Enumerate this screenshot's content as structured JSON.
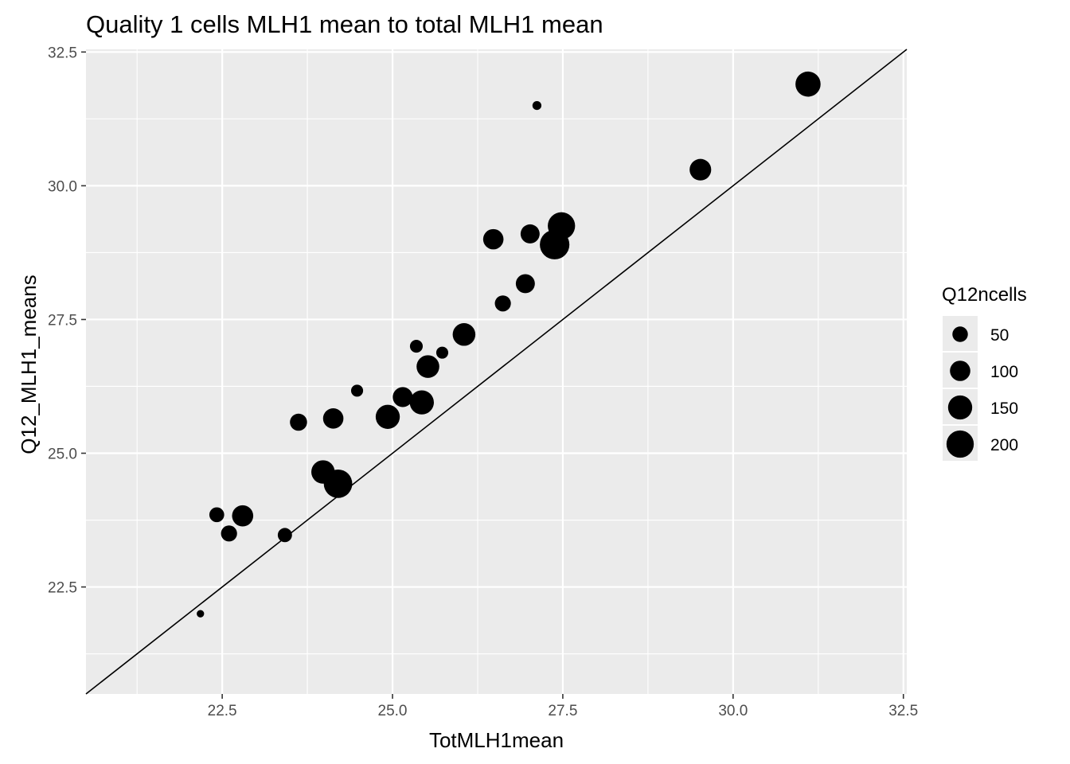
{
  "chart_data": {
    "type": "scatter",
    "title": "Quality 1 cells MLH1 mean to total MLH1 mean",
    "xlabel": "TotMLH1mean",
    "ylabel": "Q12_MLH1_means",
    "xlim": [
      20.5,
      32.55
    ],
    "ylim": [
      20.5,
      32.55
    ],
    "x_ticks": [
      "22.5",
      "25.0",
      "27.5",
      "30.0",
      "32.5"
    ],
    "y_ticks": [
      "22.5",
      "25.0",
      "27.5",
      "30.0",
      "32.5"
    ],
    "x_tick_values": [
      22.5,
      25.0,
      27.5,
      30.0,
      32.5
    ],
    "y_tick_values": [
      22.5,
      25.0,
      27.5,
      30.0,
      32.5
    ],
    "reference_line": {
      "type": "identity",
      "slope": 1,
      "intercept": 0,
      "color": "#000000"
    },
    "size_variable": "Q12ncells",
    "legend": {
      "title": "Q12ncells",
      "placement": "right",
      "entries": [
        {
          "label": "50",
          "value": 50
        },
        {
          "label": "100",
          "value": 100
        },
        {
          "label": "150",
          "value": 150
        },
        {
          "label": "200",
          "value": 200
        }
      ]
    },
    "points": [
      {
        "x": 22.18,
        "y": 22.0,
        "n": 5
      },
      {
        "x": 22.42,
        "y": 23.85,
        "n": 45
      },
      {
        "x": 22.6,
        "y": 23.5,
        "n": 55
      },
      {
        "x": 22.8,
        "y": 23.83,
        "n": 110
      },
      {
        "x": 23.42,
        "y": 23.47,
        "n": 40
      },
      {
        "x": 23.62,
        "y": 25.58,
        "n": 65
      },
      {
        "x": 23.98,
        "y": 24.65,
        "n": 140
      },
      {
        "x": 24.13,
        "y": 25.65,
        "n": 100
      },
      {
        "x": 24.2,
        "y": 24.43,
        "n": 220
      },
      {
        "x": 24.48,
        "y": 26.17,
        "n": 25
      },
      {
        "x": 24.93,
        "y": 25.68,
        "n": 150
      },
      {
        "x": 25.15,
        "y": 26.05,
        "n": 95
      },
      {
        "x": 25.35,
        "y": 27.0,
        "n": 30
      },
      {
        "x": 25.43,
        "y": 25.95,
        "n": 150
      },
      {
        "x": 25.52,
        "y": 26.62,
        "n": 130
      },
      {
        "x": 25.73,
        "y": 26.88,
        "n": 25
      },
      {
        "x": 26.05,
        "y": 27.22,
        "n": 130
      },
      {
        "x": 26.48,
        "y": 29.0,
        "n": 100
      },
      {
        "x": 26.62,
        "y": 27.8,
        "n": 55
      },
      {
        "x": 26.95,
        "y": 28.17,
        "n": 85
      },
      {
        "x": 27.02,
        "y": 29.1,
        "n": 85
      },
      {
        "x": 27.12,
        "y": 31.5,
        "n": 10
      },
      {
        "x": 27.38,
        "y": 28.9,
        "n": 240
      },
      {
        "x": 27.48,
        "y": 29.25,
        "n": 200
      },
      {
        "x": 29.52,
        "y": 30.3,
        "n": 115
      },
      {
        "x": 31.1,
        "y": 31.9,
        "n": 165
      }
    ],
    "panel_background": "#EBEBEB",
    "point_color": "#000000",
    "grid": true
  }
}
